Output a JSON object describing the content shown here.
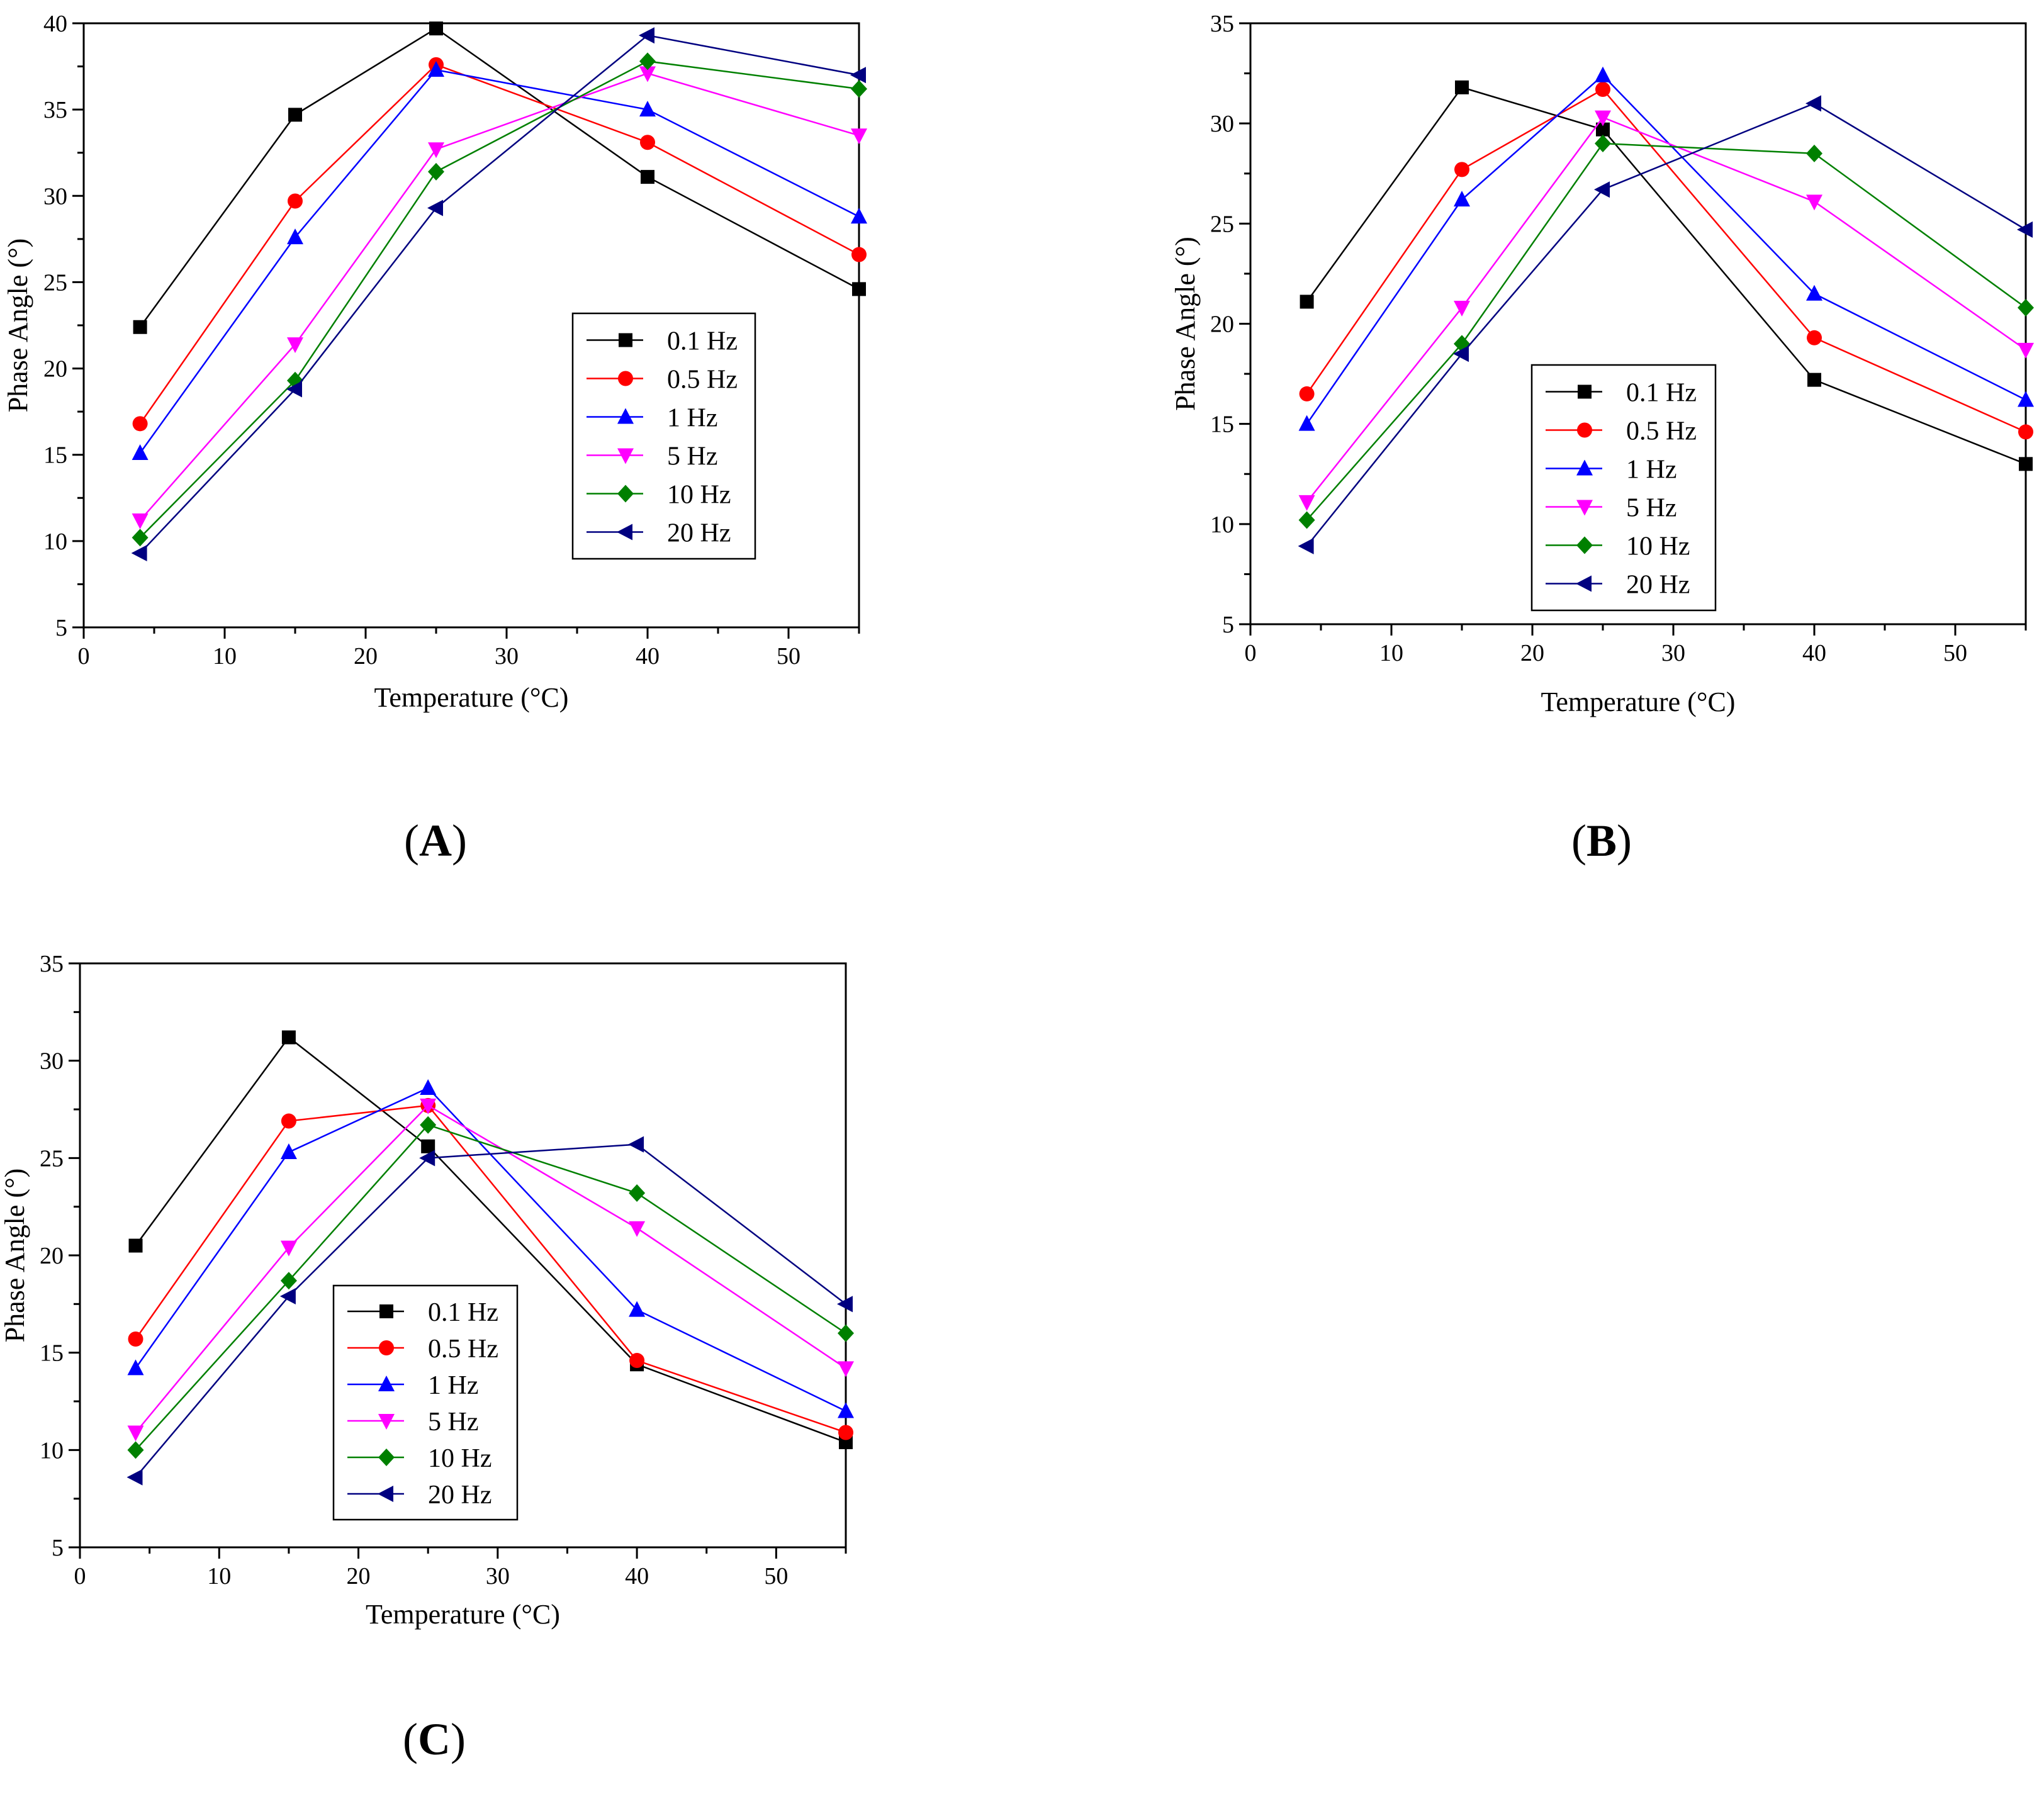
{
  "chart_data": [
    {
      "type": "line",
      "panel_label": "A",
      "xlabel": "Temperature (°C)",
      "ylabel": "Phase Angle (°)",
      "xlim": [
        0,
        55
      ],
      "ylim": [
        5,
        40
      ],
      "xticks": [
        0,
        10,
        20,
        30,
        40,
        50
      ],
      "yticks": [
        5,
        10,
        15,
        20,
        25,
        30,
        35,
        40
      ],
      "grid": false,
      "legend_position": "center-right",
      "x": [
        4,
        15,
        25,
        40,
        55
      ],
      "series": [
        {
          "name": "0.1 Hz",
          "color": "#000000",
          "marker": "square",
          "values": [
            22.4,
            34.7,
            39.7,
            31.1,
            24.6
          ]
        },
        {
          "name": "0.5 Hz",
          "color": "#ff0000",
          "marker": "circle",
          "values": [
            16.8,
            29.7,
            37.6,
            33.1,
            26.6
          ]
        },
        {
          "name": "1 Hz",
          "color": "#0000ff",
          "marker": "triangle-up",
          "values": [
            15.1,
            27.6,
            37.3,
            35.0,
            28.8
          ]
        },
        {
          "name": "5 Hz",
          "color": "#ff00ff",
          "marker": "triangle-down",
          "values": [
            11.2,
            21.4,
            32.7,
            37.1,
            33.5
          ]
        },
        {
          "name": "10 Hz",
          "color": "#008000",
          "marker": "diamond",
          "values": [
            10.2,
            19.3,
            31.4,
            37.8,
            36.2
          ]
        },
        {
          "name": "20 Hz",
          "color": "#000080",
          "marker": "triangle-left",
          "values": [
            9.3,
            18.8,
            29.3,
            39.3,
            37.0
          ]
        }
      ]
    },
    {
      "type": "line",
      "panel_label": "B",
      "xlabel": "Temperature (°C)",
      "ylabel": "Phase Angle (°)",
      "xlim": [
        0,
        55
      ],
      "ylim": [
        5,
        35
      ],
      "xticks": [
        0,
        10,
        20,
        30,
        40,
        50
      ],
      "yticks": [
        5,
        10,
        15,
        20,
        25,
        30,
        35
      ],
      "grid": false,
      "legend_position": "lower-center",
      "x": [
        4,
        15,
        25,
        40,
        55
      ],
      "series": [
        {
          "name": "0.1 Hz",
          "color": "#000000",
          "marker": "square",
          "values": [
            21.1,
            31.8,
            29.7,
            17.2,
            13.0
          ]
        },
        {
          "name": "0.5 Hz",
          "color": "#ff0000",
          "marker": "circle",
          "values": [
            16.5,
            27.7,
            31.7,
            19.3,
            14.6
          ]
        },
        {
          "name": "1 Hz",
          "color": "#0000ff",
          "marker": "triangle-up",
          "values": [
            15.0,
            26.2,
            32.4,
            21.5,
            16.2
          ]
        },
        {
          "name": "5 Hz",
          "color": "#ff00ff",
          "marker": "triangle-down",
          "values": [
            11.1,
            20.8,
            30.3,
            26.1,
            18.7
          ]
        },
        {
          "name": "10 Hz",
          "color": "#008000",
          "marker": "diamond",
          "values": [
            10.2,
            19.0,
            29.0,
            28.5,
            20.8
          ]
        },
        {
          "name": "20 Hz",
          "color": "#000080",
          "marker": "triangle-left",
          "values": [
            8.9,
            18.5,
            26.7,
            31.0,
            24.7
          ]
        }
      ]
    },
    {
      "type": "line",
      "panel_label": "C",
      "xlabel": "Temperature (°C)",
      "ylabel": "Phase Angle (°)",
      "xlim": [
        0,
        55
      ],
      "ylim": [
        5,
        35
      ],
      "xticks": [
        0,
        10,
        20,
        30,
        40,
        50
      ],
      "yticks": [
        5,
        10,
        15,
        20,
        25,
        30,
        35
      ],
      "grid": false,
      "legend_position": "lower-left",
      "x": [
        4,
        15,
        25,
        40,
        55
      ],
      "series": [
        {
          "name": "0.1 Hz",
          "color": "#000000",
          "marker": "square",
          "values": [
            20.5,
            31.2,
            25.6,
            14.4,
            10.4
          ]
        },
        {
          "name": "0.5 Hz",
          "color": "#ff0000",
          "marker": "circle",
          "values": [
            15.7,
            26.9,
            27.7,
            14.6,
            10.9
          ]
        },
        {
          "name": "1 Hz",
          "color": "#0000ff",
          "marker": "triangle-up",
          "values": [
            14.2,
            25.3,
            28.6,
            17.2,
            12.0
          ]
        },
        {
          "name": "5 Hz",
          "color": "#ff00ff",
          "marker": "triangle-down",
          "values": [
            10.9,
            20.4,
            27.7,
            21.4,
            14.2
          ]
        },
        {
          "name": "10 Hz",
          "color": "#008000",
          "marker": "diamond",
          "values": [
            10.0,
            18.7,
            26.7,
            23.2,
            16.0
          ]
        },
        {
          "name": "20 Hz",
          "color": "#000080",
          "marker": "triangle-left",
          "values": [
            8.6,
            17.9,
            25.0,
            25.7,
            17.5
          ]
        }
      ]
    }
  ]
}
